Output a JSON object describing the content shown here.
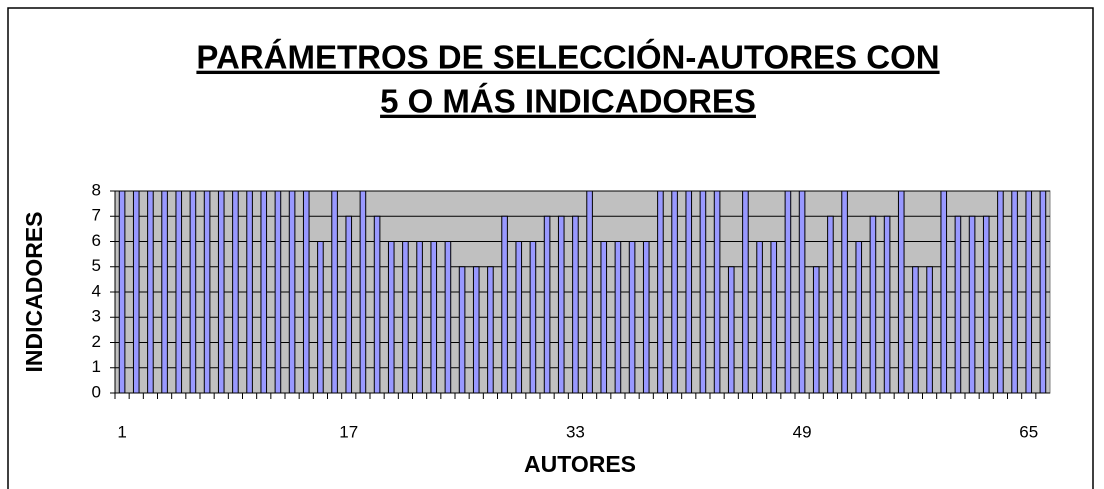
{
  "chart_data": {
    "type": "bar",
    "title": [
      "PARÁMETROS DE SELECCIÓN-AUTORES CON",
      "5 O MÁS INDICADORES"
    ],
    "x_label": "AUTORES",
    "y_label": "INDICADORES",
    "categories": [
      "1",
      null,
      null,
      null,
      null,
      null,
      null,
      null,
      null,
      null,
      null,
      null,
      null,
      null,
      null,
      null,
      "17",
      null,
      null,
      null,
      null,
      null,
      null,
      null,
      null,
      null,
      null,
      null,
      null,
      null,
      null,
      null,
      "33",
      null,
      null,
      null,
      null,
      null,
      null,
      null,
      null,
      null,
      null,
      null,
      null,
      null,
      null,
      null,
      "49",
      null,
      null,
      null,
      null,
      null,
      null,
      null,
      null,
      null,
      null,
      null,
      null,
      null,
      null,
      null,
      "65",
      null
    ],
    "values": [
      8,
      8,
      8,
      8,
      8,
      8,
      8,
      8,
      8,
      8,
      8,
      8,
      8,
      8,
      6,
      8,
      7,
      8,
      7,
      6,
      6,
      6,
      6,
      6,
      5,
      5,
      5,
      7,
      6,
      6,
      7,
      7,
      7,
      8,
      6,
      6,
      6,
      6,
      8,
      8,
      8,
      8,
      8,
      5,
      8,
      6,
      6,
      8,
      8,
      5,
      7,
      8,
      6,
      7,
      7,
      8,
      5,
      5,
      8,
      7,
      7,
      7,
      8,
      8,
      8,
      8
    ],
    "color": "#9999ff",
    "background": "#c0c0c0",
    "ylim": [
      0,
      8
    ],
    "yticks": [
      0,
      1,
      2,
      3,
      4,
      5,
      6,
      7,
      8
    ],
    "grid": true
  }
}
